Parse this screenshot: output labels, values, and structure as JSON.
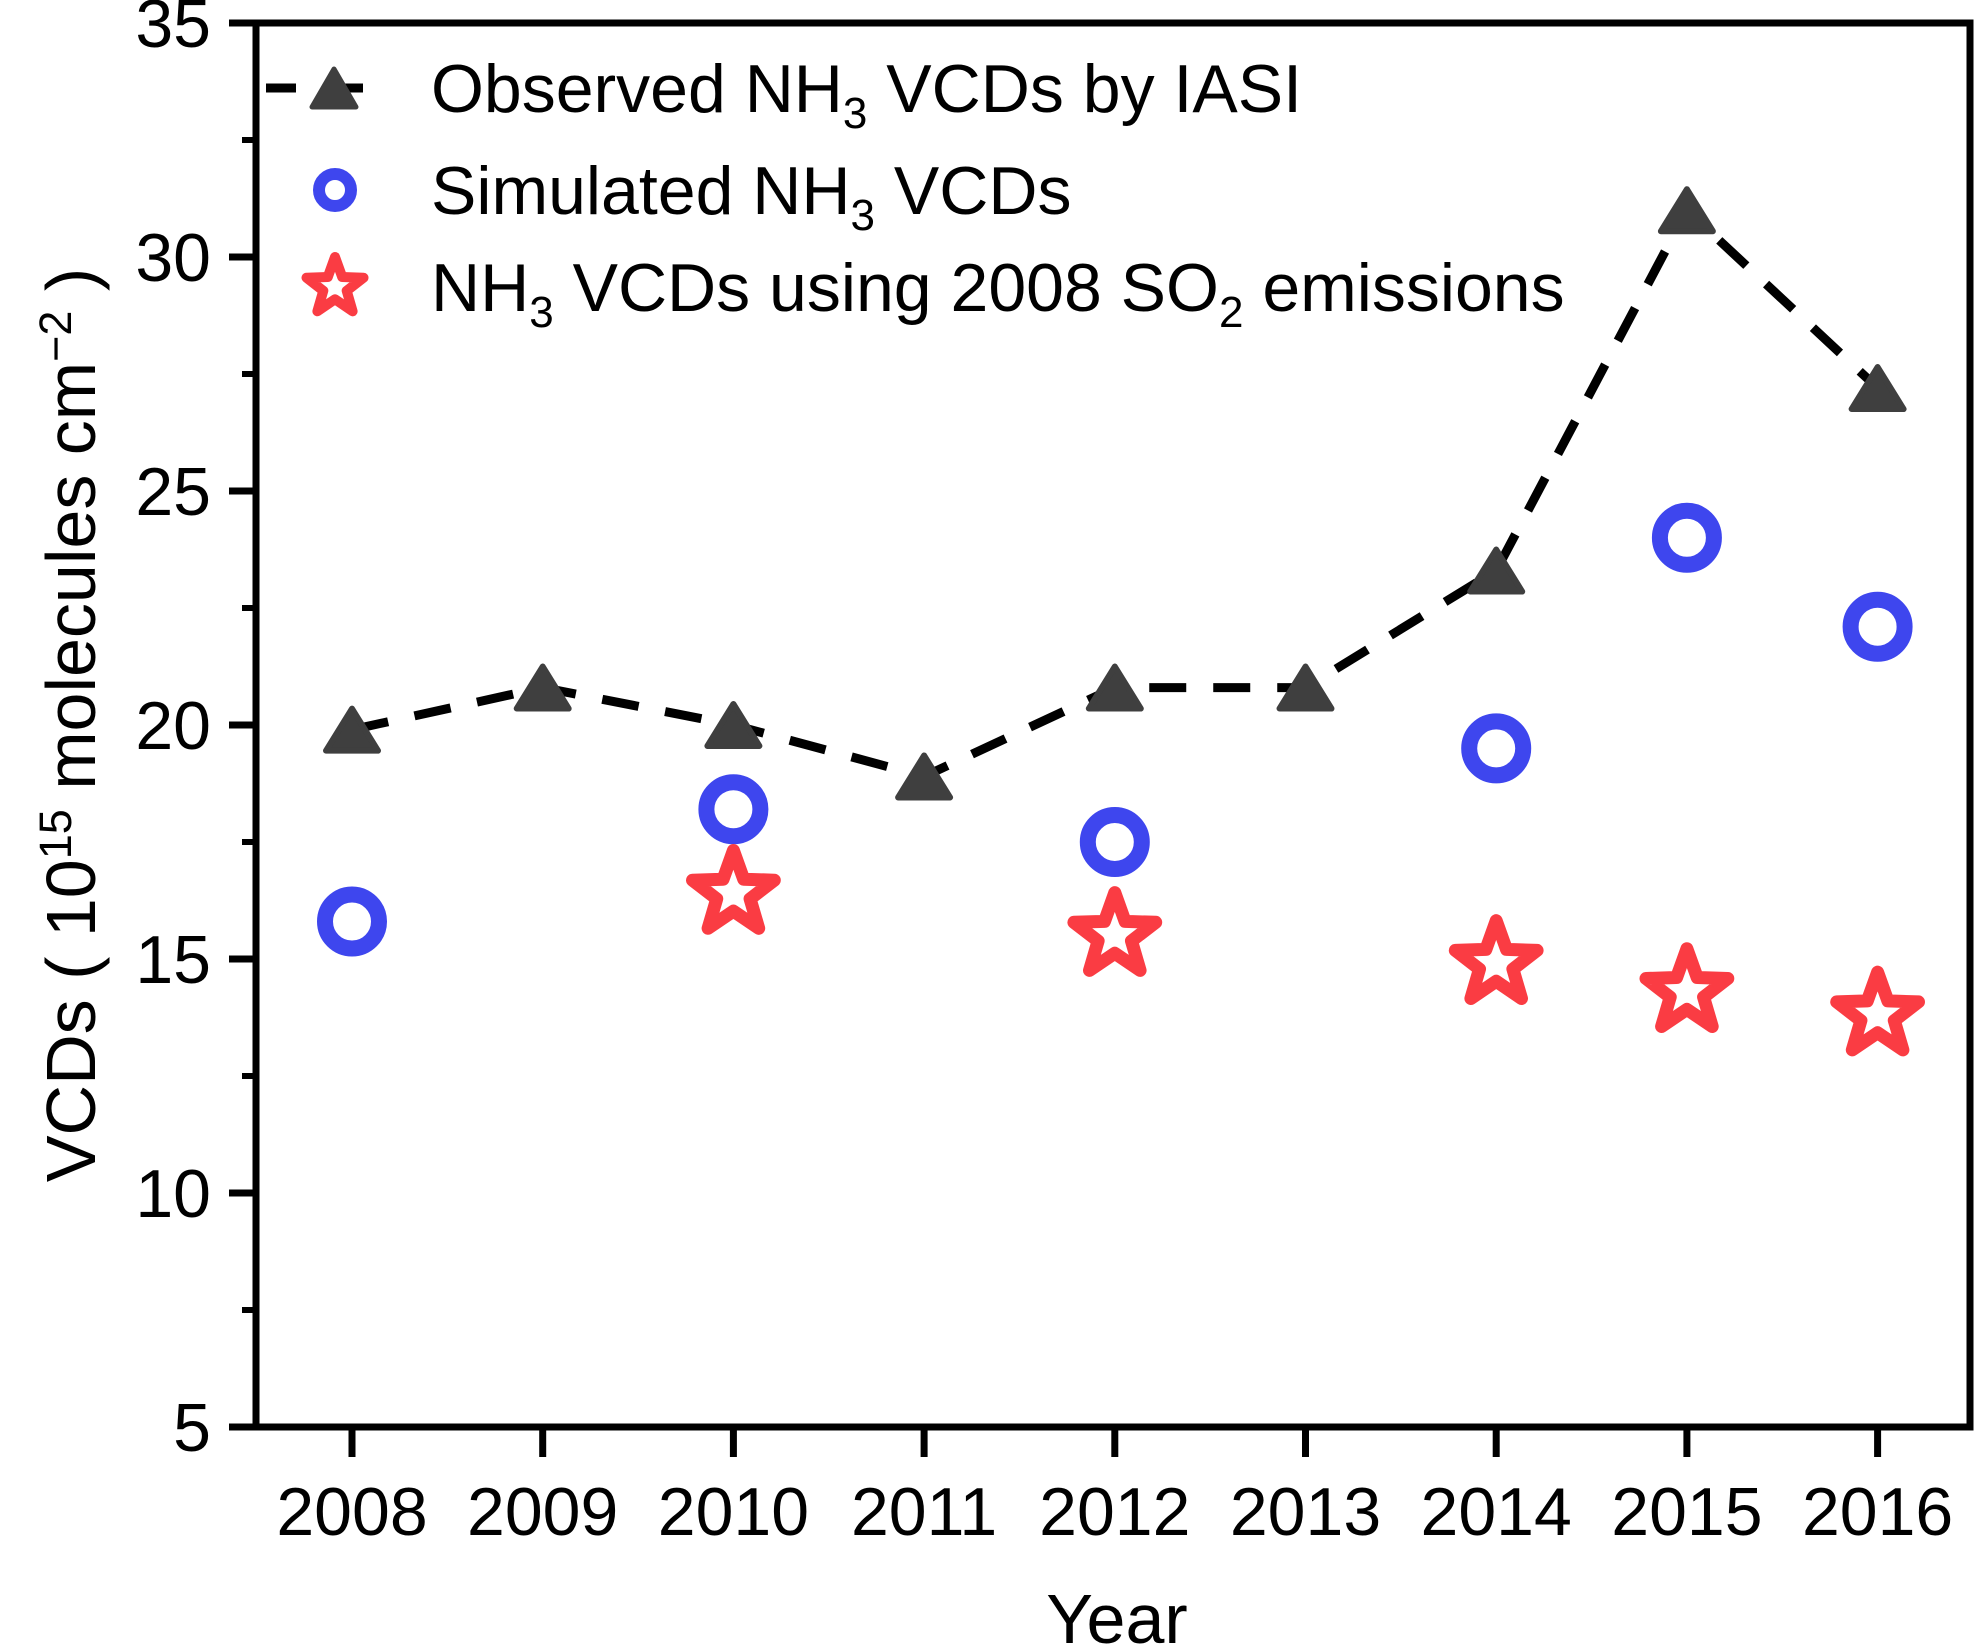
{
  "figure": {
    "background": "#ffffff",
    "description_title": "NH3 vertical column densities over years"
  },
  "colors": {
    "axis": "#000000",
    "observed_marker": "#3f3f3f",
    "observed_line": "#000000",
    "simulated": "#3e46ee",
    "fixed_so2": "#fa3c43",
    "marker_hole": "#ffffff",
    "background": "#ffffff"
  },
  "chart_data": {
    "type": "line",
    "title": "",
    "xlabel": "Year",
    "ylabel": "VCDs ( 10¹⁵ molecules cm⁻² )",
    "ylabel_parts": [
      {
        "t": "VCDs ( 10"
      },
      {
        "t": "15",
        "sup": true
      },
      {
        "t": " molecules cm"
      },
      {
        "t": "−2",
        "sup": true
      },
      {
        "t": " )"
      }
    ],
    "xlim": [
      2007.5,
      2016.5
    ],
    "ylim": [
      5,
      35
    ],
    "x_ticks": [
      2008,
      2009,
      2010,
      2011,
      2012,
      2013,
      2014,
      2015,
      2016
    ],
    "y_major_ticks": [
      5,
      10,
      15,
      20,
      25,
      30,
      35
    ],
    "y_minor_ticks": [
      7.5,
      12.5,
      17.5,
      22.5,
      27.5,
      32.5
    ],
    "grid": "off",
    "legend_position": "top-left",
    "series": [
      {
        "name": "Observed NH3 VCDs by IASI",
        "marker": "triangle",
        "line_style": "dashed",
        "color": "#3f3f3f",
        "line_color": "#000000",
        "x": [
          2008,
          2009,
          2010,
          2011,
          2012,
          2013,
          2014,
          2015,
          2016
        ],
        "values": [
          19.9,
          20.8,
          20.0,
          18.9,
          20.8,
          20.8,
          23.3,
          31.0,
          27.2
        ]
      },
      {
        "name": "Simulated NH3 VCDs",
        "marker": "circle",
        "line_style": "none",
        "color": "#3e46ee",
        "x": [
          2008,
          2010,
          2012,
          2014,
          2015,
          2016
        ],
        "values": [
          15.8,
          18.2,
          17.5,
          19.5,
          24.0,
          22.1
        ]
      },
      {
        "name": "NH3 VCDs using 2008 SO2 emissions",
        "marker": "star",
        "line_style": "none",
        "color": "#fa3c43",
        "x": [
          2010,
          2012,
          2014,
          2015,
          2016
        ],
        "values": [
          16.4,
          15.5,
          14.9,
          14.3,
          13.8
        ]
      }
    ],
    "legend": {
      "items": [
        {
          "label": "Observed NH3 VCDs by IASI",
          "marker": "triangle",
          "label_parts": [
            {
              "t": "Observed NH"
            },
            {
              "t": "3",
              "sub": true
            },
            {
              "t": " VCDs by IASI"
            }
          ]
        },
        {
          "label": "Simulated NH3 VCDs",
          "marker": "circle",
          "label_parts": [
            {
              "t": "Simulated NH"
            },
            {
              "t": "3",
              "sub": true
            },
            {
              "t": " VCDs"
            }
          ]
        },
        {
          "label": "NH3 VCDs using 2008 SO2 emissions",
          "marker": "star",
          "label_parts": [
            {
              "t": "NH"
            },
            {
              "t": "3",
              "sub": true
            },
            {
              "t": " VCDs using 2008 SO"
            },
            {
              "t": "2",
              "sub": true
            },
            {
              "t": " emissions"
            }
          ]
        }
      ]
    }
  }
}
